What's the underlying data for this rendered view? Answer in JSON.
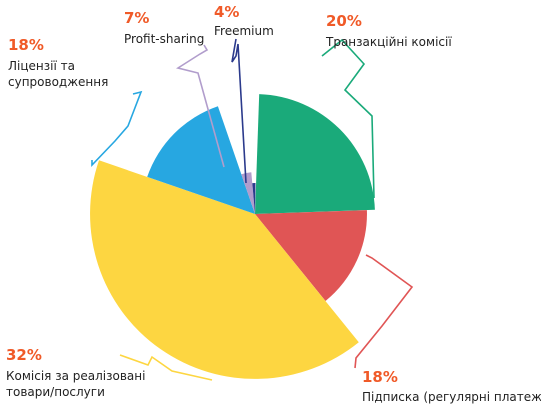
{
  "chart_data": {
    "type": "pie",
    "title": "",
    "legend": "none",
    "series": [
      {
        "label_lines": [
          "Транзакційні комісії"
        ],
        "value": 20,
        "value_label": "20%",
        "color": "#1aaa7a"
      },
      {
        "label_lines": [
          "Підписка (регулярні платежі)"
        ],
        "value": 18,
        "value_label": "18%",
        "color": "#e05555"
      },
      {
        "label_lines": [
          "Комісія за реалізовані",
          "товари/послуги"
        ],
        "value": 32,
        "value_label": "32%",
        "color": "#fdd641"
      },
      {
        "label_lines": [
          "Ліцензії та",
          "супроводження"
        ],
        "value": 18,
        "value_label": "18%",
        "color": "#27a7e1"
      },
      {
        "label_lines": [
          "Profit-sharing"
        ],
        "value": 7,
        "value_label": "7%",
        "color": "#b19dcc"
      },
      {
        "label_lines": [
          "Freemium"
        ],
        "value": 4,
        "value_label": "4%",
        "color": "#2b3a8c"
      }
    ]
  }
}
